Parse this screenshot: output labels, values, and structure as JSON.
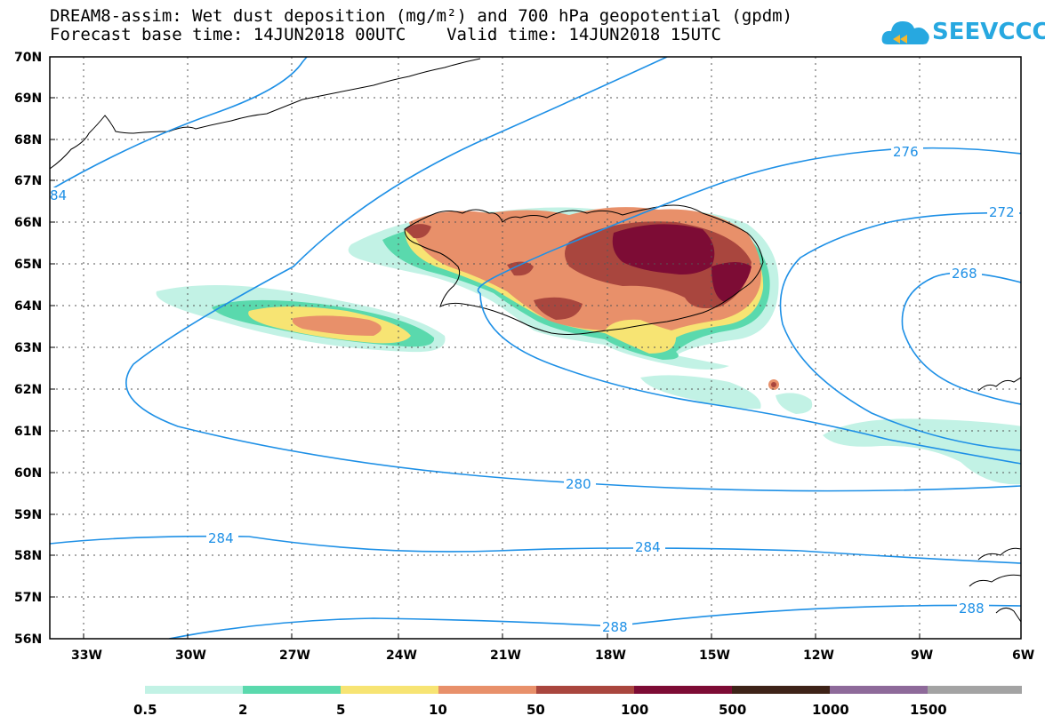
{
  "header": {
    "line1": "DREAM8-assim: Wet dust deposition (mg/m²) and 700 hPa geopotential (gpdm)",
    "line2": "Forecast base time: 14JUN2018 00UTC    Valid time: 14JUN2018 15UTC"
  },
  "logo": {
    "text": "SEEVCCC",
    "icon": "cloud-icon"
  },
  "map": {
    "lat_labels": [
      "70N",
      "69N",
      "68N",
      "67N",
      "66N",
      "65N",
      "64N",
      "63N",
      "62N",
      "61N",
      "60N",
      "59N",
      "58N",
      "57N",
      "56N"
    ],
    "lon_labels": [
      "33W",
      "30W",
      "27W",
      "24W",
      "21W",
      "18W",
      "15W",
      "12W",
      "9W",
      "6W"
    ],
    "contour_labels": [
      "276",
      "272",
      "268",
      "280",
      "284",
      "284",
      "288",
      "288",
      "84"
    ]
  },
  "colorbar": {
    "labels": [
      "0.5",
      "2",
      "5",
      "10",
      "50",
      "100",
      "500",
      "1000",
      "1500"
    ],
    "colors": [
      "#c2f2e5",
      "#5ad9ad",
      "#f7e473",
      "#e8906a",
      "#a9463e",
      "#7d0c35",
      "#3e2318",
      "#8e6a9a",
      "#a3a3a3"
    ]
  }
}
